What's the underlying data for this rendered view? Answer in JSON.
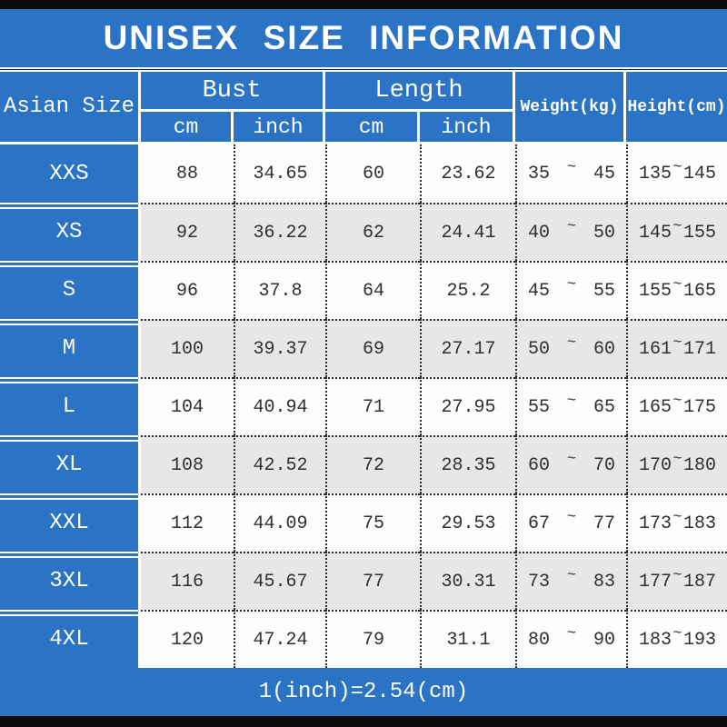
{
  "title_bar": {
    "title": "UNISEX SIZE INFORMATION"
  },
  "colors": {
    "blue": "#2a73c5",
    "stripe_gray": "#e8e6e7",
    "black_bar": "#0b0b0b",
    "data_text": "#2f2f2f"
  },
  "chart_data": {
    "type": "table",
    "title": "UNISEX SIZE INFORMATION",
    "column_groups": [
      {
        "label": "Asian Size"
      },
      {
        "label": "Bust",
        "sub": [
          "cm",
          "inch"
        ]
      },
      {
        "label": "Length",
        "sub": [
          "cm",
          "inch"
        ]
      },
      {
        "label": "Weight(kg)"
      },
      {
        "label": "Height(cm)"
      }
    ],
    "range_separator": "~",
    "rows": [
      {
        "size": "XXS",
        "bust_cm": "88",
        "bust_inch": "34.65",
        "length_cm": "60",
        "length_inch": "23.62",
        "weight": [
          "35",
          "45"
        ],
        "height": [
          "135",
          "145"
        ]
      },
      {
        "size": "XS",
        "bust_cm": "92",
        "bust_inch": "36.22",
        "length_cm": "62",
        "length_inch": "24.41",
        "weight": [
          "40",
          "50"
        ],
        "height": [
          "145",
          "155"
        ]
      },
      {
        "size": "S",
        "bust_cm": "96",
        "bust_inch": "37.8",
        "length_cm": "64",
        "length_inch": "25.2",
        "weight": [
          "45",
          "55"
        ],
        "height": [
          "155",
          "165"
        ]
      },
      {
        "size": "M",
        "bust_cm": "100",
        "bust_inch": "39.37",
        "length_cm": "69",
        "length_inch": "27.17",
        "weight": [
          "50",
          "60"
        ],
        "height": [
          "161",
          "171"
        ]
      },
      {
        "size": "L",
        "bust_cm": "104",
        "bust_inch": "40.94",
        "length_cm": "71",
        "length_inch": "27.95",
        "weight": [
          "55",
          "65"
        ],
        "height": [
          "165",
          "175"
        ]
      },
      {
        "size": "XL",
        "bust_cm": "108",
        "bust_inch": "42.52",
        "length_cm": "72",
        "length_inch": "28.35",
        "weight": [
          "60",
          "70"
        ],
        "height": [
          "170",
          "180"
        ]
      },
      {
        "size": "XXL",
        "bust_cm": "112",
        "bust_inch": "44.09",
        "length_cm": "75",
        "length_inch": "29.53",
        "weight": [
          "67",
          "77"
        ],
        "height": [
          "173",
          "183"
        ]
      },
      {
        "size": "3XL",
        "bust_cm": "116",
        "bust_inch": "45.67",
        "length_cm": "77",
        "length_inch": "30.31",
        "weight": [
          "73",
          "83"
        ],
        "height": [
          "177",
          "187"
        ]
      },
      {
        "size": "4XL",
        "bust_cm": "120",
        "bust_inch": "47.24",
        "length_cm": "79",
        "length_inch": "31.1",
        "weight": [
          "80",
          "90"
        ],
        "height": [
          "183",
          "193"
        ]
      }
    ],
    "note": "1(inch)=2.54(cm)"
  }
}
